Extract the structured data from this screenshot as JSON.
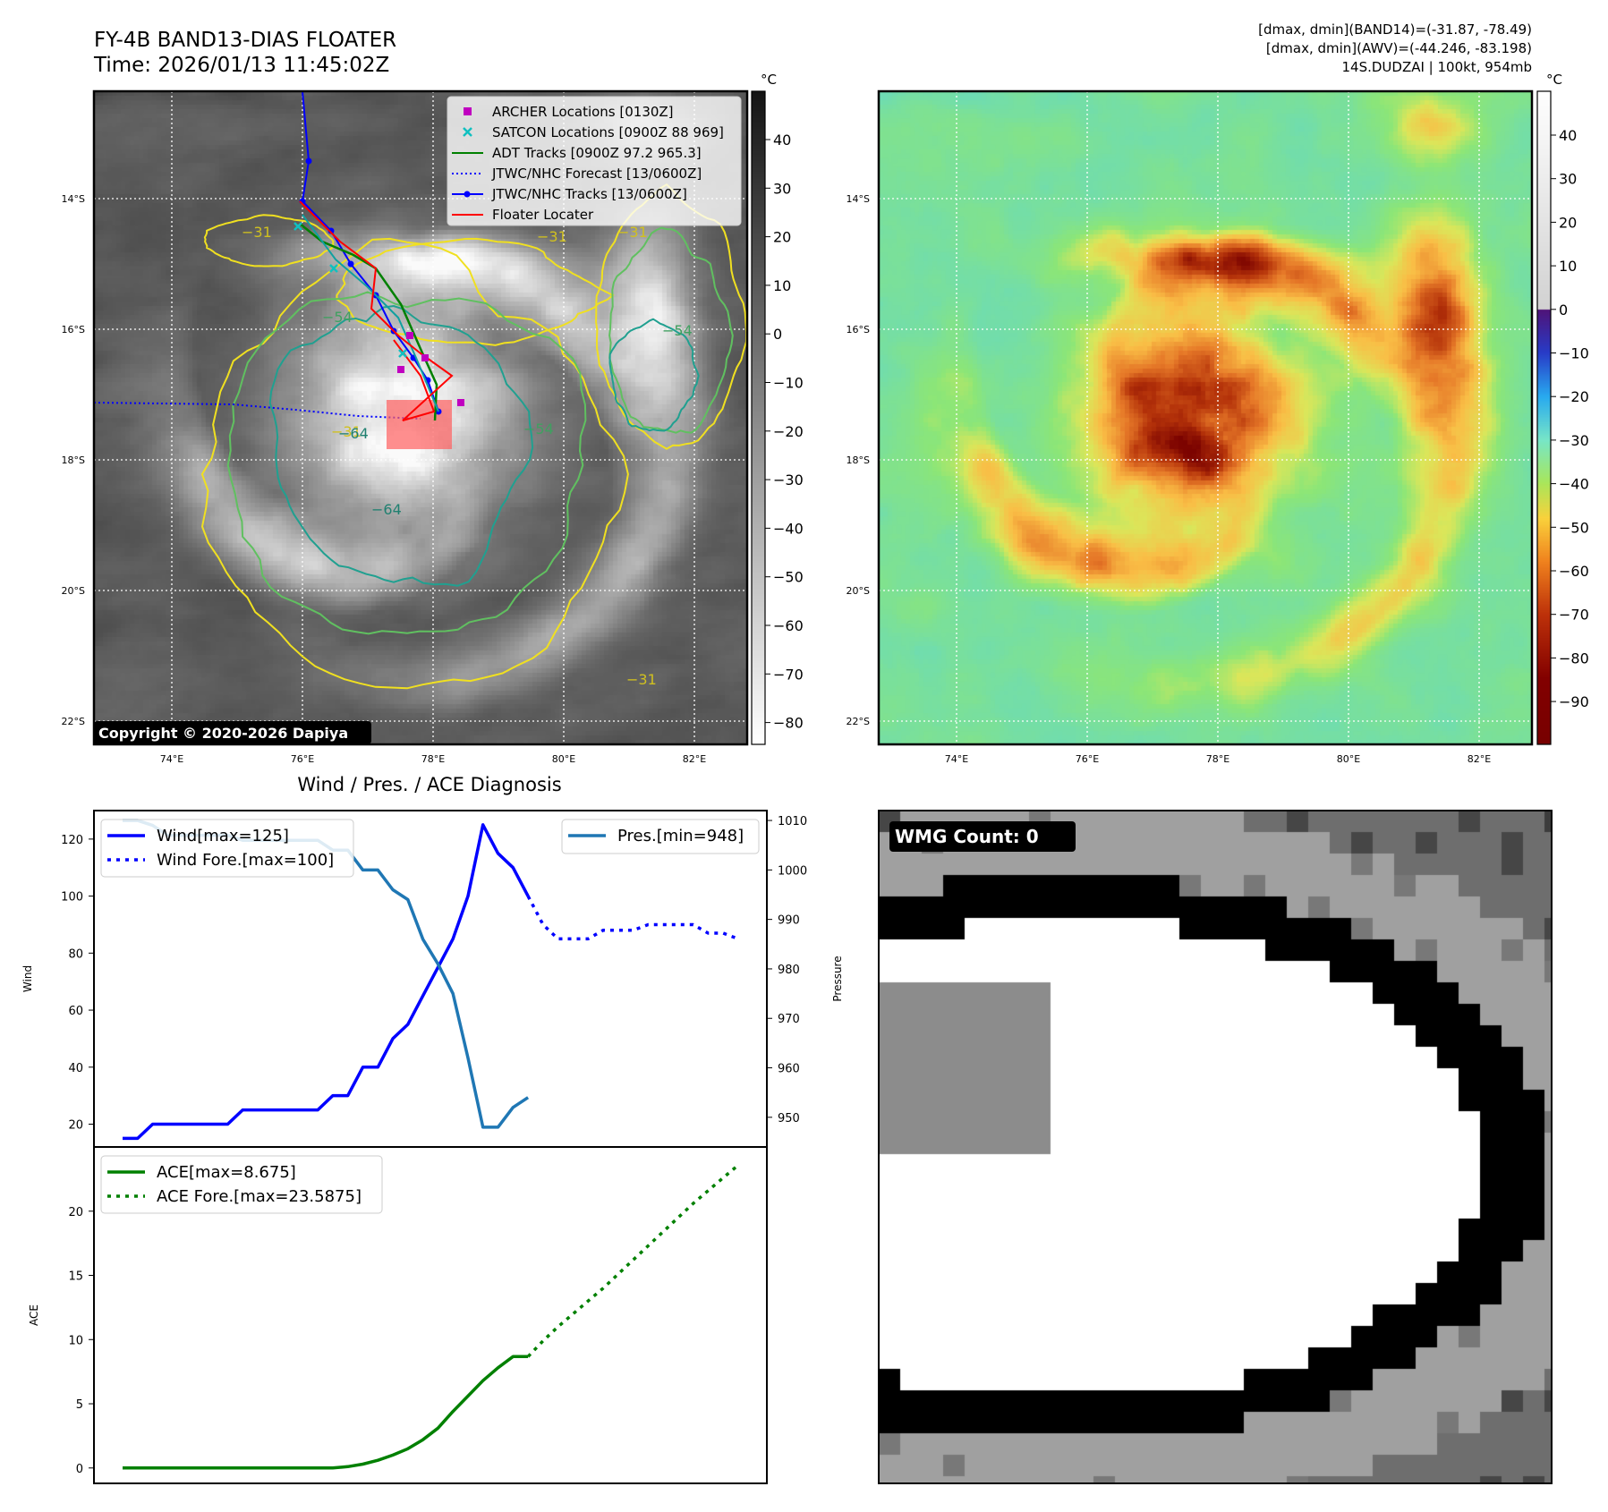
{
  "header": {
    "title_line1": "FY-4B BAND13-DIAS FLOATER",
    "title_line2": "Time: 2026/01/13 11:45:02Z",
    "info_line1": "[dmax, dmin](BAND14)=(-31.87, -78.49)",
    "info_line2": "[dmax, dmin](AWV)=(-44.246, -83.198)",
    "info_line3": "14S.DUDZAI | 100kt, 954mb"
  },
  "copyright": "Copyright © 2020-2026 Dapiya",
  "colorbar_unit": "°C",
  "map_axes": {
    "lat_ticks": [
      "14°S",
      "16°S",
      "18°S",
      "20°S",
      "22°S"
    ],
    "lon_ticks": [
      "74°E",
      "76°E",
      "78°E",
      "80°E",
      "82°E"
    ]
  },
  "colorbar_ir": {
    "ticks": [
      "40",
      "30",
      "20",
      "10",
      "0",
      "−10",
      "−20",
      "−30",
      "−40",
      "−50",
      "−60",
      "−70",
      "−80"
    ]
  },
  "colorbar_wv": {
    "ticks": [
      "40",
      "30",
      "20",
      "10",
      "0",
      "−10",
      "−20",
      "−30",
      "−40",
      "−50",
      "−60",
      "−70",
      "−80",
      "−90"
    ]
  },
  "legend_map": [
    {
      "label": "ARCHER Locations [0130Z]",
      "color": "#c000c0",
      "marker": "square"
    },
    {
      "label": "SATCON Locations [0900Z 88 969]",
      "color": "#10c0c0",
      "marker": "x"
    },
    {
      "label": "ADT Tracks [0900Z 97.2 965.3]",
      "color": "#008000",
      "marker": "line"
    },
    {
      "label": "JTWC/NHC Forecast [13/0600Z]",
      "color": "#0000ff",
      "marker": "dotted"
    },
    {
      "label": "JTWC/NHC Tracks [13/0600Z]",
      "color": "#0000ff",
      "marker": "line-dot"
    },
    {
      "label": "Floater Locater",
      "color": "#ff0000",
      "marker": "line"
    }
  ],
  "contour_labels": [
    "−31",
    "−31",
    "−31",
    "−31",
    "−31",
    "−54",
    "−54",
    "−54",
    "−64",
    "−64"
  ],
  "wmg": {
    "label": "WMG Count: 0"
  },
  "chart_data": [
    {
      "type": "line",
      "title": "Wind / Pres. / ACE Diagnosis",
      "ylabel": "Wind",
      "ylabel_right": "Pressure",
      "ylim": [
        12,
        130
      ],
      "ylim_right": [
        944,
        1012
      ],
      "yticks": [
        20,
        40,
        60,
        80,
        100,
        120
      ],
      "yticks_right": [
        950,
        960,
        970,
        980,
        990,
        1000,
        1010
      ],
      "series": [
        {
          "name": "Wind[max=125]",
          "style": "solid",
          "color": "#0000ff",
          "values": [
            15,
            15,
            20,
            20,
            20,
            20,
            20,
            20,
            25,
            25,
            25,
            25,
            25,
            25,
            30,
            30,
            40,
            40,
            50,
            55,
            65,
            75,
            85,
            100,
            125,
            115,
            110,
            100
          ]
        },
        {
          "name": "Wind Fore.[max=100]",
          "style": "dotted",
          "color": "#0000ff",
          "start_index": 27,
          "values": [
            100,
            90,
            85,
            85,
            85,
            88,
            88,
            88,
            90,
            90,
            90,
            90,
            87,
            87,
            85
          ]
        },
        {
          "name": "Pres.[min=948]",
          "style": "solid",
          "color": "#1f77b4",
          "axis": "right",
          "values": [
            1010,
            1010,
            1009,
            1007,
            1007,
            1007,
            1007,
            1007,
            1006,
            1006,
            1006,
            1006,
            1006,
            1006,
            1004,
            1004,
            1000,
            1000,
            996,
            994,
            986,
            981,
            975,
            962,
            948,
            948,
            952,
            954
          ]
        }
      ]
    },
    {
      "type": "line",
      "ylabel": "ACE",
      "ylim": [
        -1.2,
        25
      ],
      "yticks": [
        0,
        5,
        10,
        15,
        20
      ],
      "series": [
        {
          "name": "ACE[max=8.675]",
          "style": "solid",
          "color": "#008000",
          "values": [
            0,
            0,
            0,
            0,
            0,
            0,
            0,
            0,
            0,
            0,
            0,
            0,
            0,
            0,
            0,
            0.1,
            0.3,
            0.6,
            1.0,
            1.5,
            2.2,
            3.1,
            4.4,
            5.6,
            6.8,
            7.8,
            8.675,
            8.675
          ]
        },
        {
          "name": "ACE Fore.[max=23.5875]",
          "style": "dotted",
          "color": "#008000",
          "start_index": 27,
          "values": [
            8.675,
            9.9,
            11.0,
            12.0,
            13.0,
            14.0,
            15.1,
            16.2,
            17.3,
            18.4,
            19.5,
            20.6,
            21.6,
            22.6,
            23.5875
          ]
        }
      ]
    }
  ]
}
